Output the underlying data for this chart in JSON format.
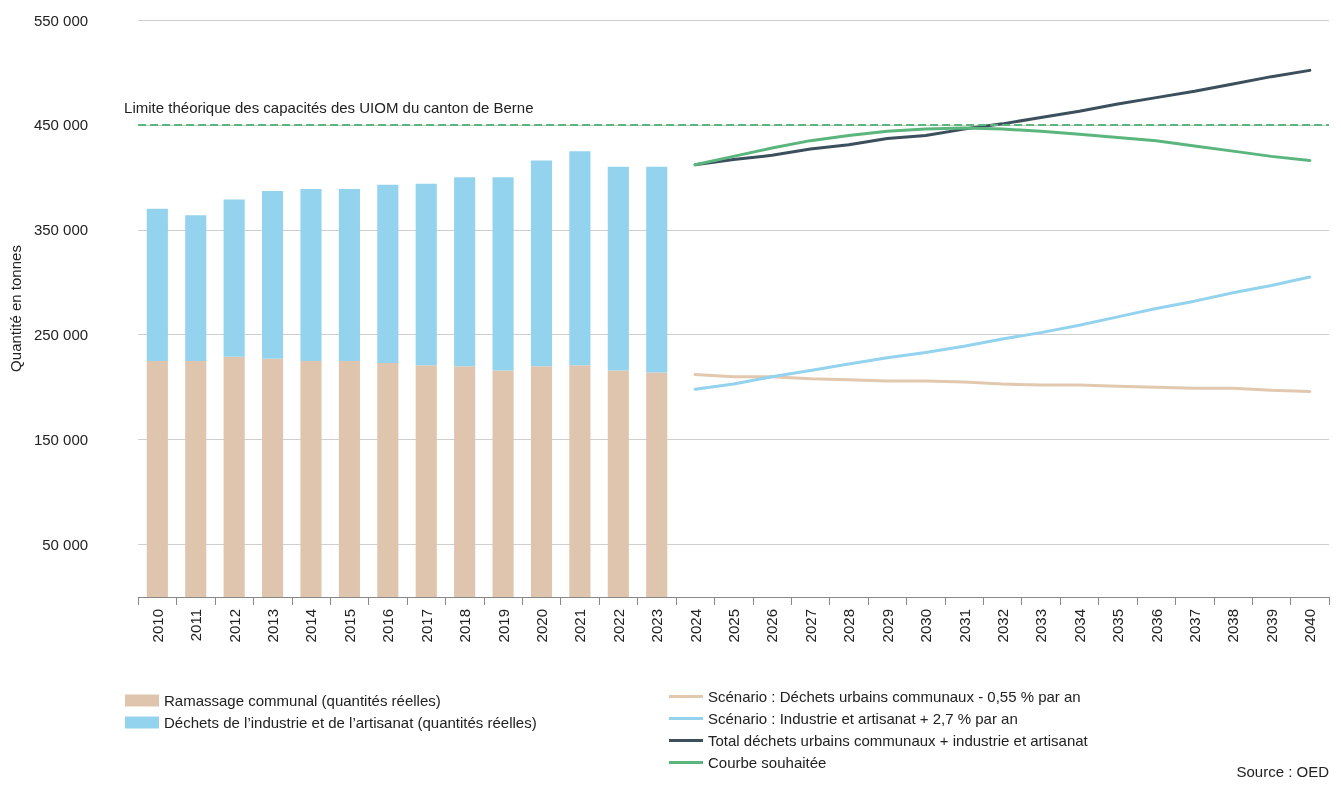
{
  "chart_data": {
    "type": "bar",
    "ylabel": "Quantité en tonnes",
    "categories": [
      "2010",
      "2011",
      "2012",
      "2013",
      "2014",
      "2015",
      "2016",
      "2017",
      "2018",
      "2019",
      "2020",
      "2021",
      "2022",
      "2023",
      "2024",
      "2025",
      "2026",
      "2027",
      "2028",
      "2029",
      "2030",
      "2031",
      "2032",
      "2033",
      "2034",
      "2035",
      "2036",
      "2037",
      "2038",
      "2039",
      "2040"
    ],
    "stacked": true,
    "grid": "y",
    "legend": "bottom",
    "marker": "none",
    "line_style": "solid",
    "ylim": [
      0,
      550000
    ],
    "yticks": [
      {
        "value": 50000,
        "label": "50 000"
      },
      {
        "value": 150000,
        "label": "150 000"
      },
      {
        "value": 250000,
        "label": "250 000"
      },
      {
        "value": 350000,
        "label": "350 000"
      },
      {
        "value": 450000,
        "label": "450 000"
      },
      {
        "value": 550000,
        "label": "550 000"
      }
    ],
    "series": [
      {
        "name": "Ramassage communal (quantités réelles)",
        "color": "#dfc5ae",
        "values": [
          225000,
          225000,
          229000,
          227000,
          225000,
          225000,
          223000,
          221000,
          220000,
          216000,
          220000,
          221000,
          216000,
          214000,
          null,
          null,
          null,
          null,
          null,
          null,
          null,
          null,
          null,
          null,
          null,
          null,
          null,
          null,
          null,
          null,
          null
        ]
      },
      {
        "name": "Déchets de l’industrie et de l’artisanat (quantités réelles)",
        "color": "#93d3ee",
        "values": [
          145000,
          139000,
          150000,
          160000,
          164000,
          164000,
          170000,
          173000,
          180000,
          184000,
          196000,
          204000,
          194000,
          196000,
          null,
          null,
          null,
          null,
          null,
          null,
          null,
          null,
          null,
          null,
          null,
          null,
          null,
          null,
          null,
          null,
          null
        ]
      },
      {
        "name": "Scénario : Déchets urbains communaux - 0,55 % par an",
        "type": "line",
        "color": "#e3c8b0",
        "values": [
          null,
          null,
          null,
          null,
          null,
          null,
          null,
          null,
          null,
          null,
          null,
          null,
          null,
          null,
          212000,
          210000,
          210000,
          208000,
          207000,
          206000,
          206000,
          205000,
          203000,
          202000,
          202000,
          201000,
          200000,
          199000,
          199000,
          197000,
          196000
        ]
      },
      {
        "name": "Scénario : Industrie et artisanat + 2,7 % par an",
        "type": "line",
        "color": "#93d3ee",
        "values": [
          null,
          null,
          null,
          null,
          null,
          null,
          null,
          null,
          null,
          null,
          null,
          null,
          null,
          null,
          198000,
          203000,
          210000,
          216000,
          222000,
          228000,
          233000,
          239000,
          246000,
          252000,
          259000,
          267000,
          275000,
          282000,
          290000,
          297000,
          305000
        ]
      },
      {
        "name": "Total déchets urbains communaux + industrie et artisanat",
        "type": "line",
        "color": "#3b4f5c",
        "values": [
          null,
          null,
          null,
          null,
          null,
          null,
          null,
          null,
          null,
          null,
          null,
          null,
          null,
          null,
          412000,
          417000,
          421000,
          427000,
          431000,
          437000,
          440000,
          446000,
          451000,
          457000,
          463000,
          470000,
          476000,
          482000,
          489000,
          496000,
          502000
        ]
      },
      {
        "name": "Courbe souhaitée",
        "type": "line",
        "color": "#5bb67e",
        "values": [
          null,
          null,
          null,
          null,
          null,
          null,
          null,
          null,
          null,
          null,
          null,
          null,
          null,
          null,
          412000,
          420000,
          428000,
          435000,
          440000,
          444000,
          446000,
          447000,
          446000,
          444000,
          441000,
          438000,
          435000,
          430000,
          425000,
          420000,
          416000
        ]
      }
    ],
    "ref_lines": [
      {
        "axis": "y",
        "value": 450000,
        "label": "Limite théorique des capacités des UIOM du canton de Berne",
        "color": "#5bb67e",
        "line_style": "dashed"
      }
    ],
    "annotations": [
      "Source : OED"
    ]
  }
}
